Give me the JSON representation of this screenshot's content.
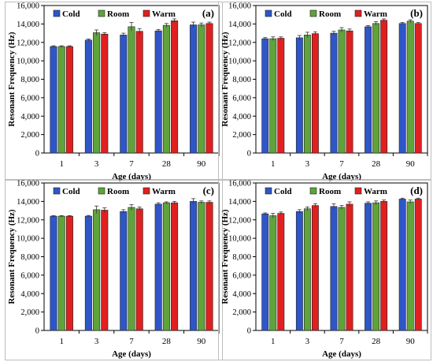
{
  "legend": {
    "colors": {
      "Cold": "#2e56c8",
      "Room": "#5fa33a",
      "Warm": "#e01f1f"
    }
  },
  "chart_data": [
    {
      "type": "bar",
      "panel_label": "(a)",
      "xlabel": "Age (days)",
      "ylabel": "Resonant Frequency (Hz)",
      "ylim": [
        0,
        16000
      ],
      "yticks": [
        0,
        2000,
        4000,
        6000,
        8000,
        10000,
        12000,
        14000,
        16000
      ],
      "ytick_labels": [
        "0",
        "2,000",
        "4,000",
        "6,000",
        "8,000",
        "10,000",
        "12,000",
        "14,000",
        "16,000"
      ],
      "categories": [
        "1",
        "3",
        "7",
        "28",
        "90"
      ],
      "legend_position": "top",
      "series": [
        {
          "name": "Cold",
          "color": "#2e56c8",
          "values": [
            11550,
            12250,
            12800,
            13250,
            13900
          ],
          "errors": [
            80,
            120,
            200,
            150,
            300
          ]
        },
        {
          "name": "Room",
          "color": "#5fa33a",
          "values": [
            11550,
            13050,
            13700,
            13850,
            13900
          ],
          "errors": [
            80,
            300,
            450,
            200,
            200
          ]
        },
        {
          "name": "Warm",
          "color": "#e01f1f",
          "values": [
            11550,
            12900,
            13200,
            14350,
            14050
          ],
          "errors": [
            80,
            150,
            300,
            200,
            150
          ]
        }
      ]
    },
    {
      "type": "bar",
      "panel_label": "(b)",
      "xlabel": "Age (days)",
      "ylabel": "Resonant Frequency (Hz)",
      "ylim": [
        0,
        16000
      ],
      "yticks": [
        0,
        2000,
        4000,
        6000,
        8000,
        10000,
        12000,
        14000,
        16000
      ],
      "ytick_labels": [
        "0",
        "2,000",
        "4,000",
        "6,000",
        "8,000",
        "10,000",
        "12,000",
        "14,000",
        "16,000"
      ],
      "categories": [
        "1",
        "3",
        "7",
        "28",
        "90"
      ],
      "legend_position": "top",
      "series": [
        {
          "name": "Cold",
          "color": "#2e56c8",
          "values": [
            12400,
            12500,
            13000,
            13700,
            14050
          ],
          "errors": [
            120,
            250,
            200,
            120,
            100
          ]
        },
        {
          "name": "Room",
          "color": "#5fa33a",
          "values": [
            12400,
            12800,
            13350,
            14050,
            14300
          ],
          "errors": [
            200,
            300,
            250,
            200,
            150
          ]
        },
        {
          "name": "Warm",
          "color": "#e01f1f",
          "values": [
            12450,
            12950,
            13250,
            14400,
            14050
          ],
          "errors": [
            150,
            200,
            200,
            150,
            100
          ]
        }
      ]
    },
    {
      "type": "bar",
      "panel_label": "(c)",
      "xlabel": "Age (days)",
      "ylabel": "Resonant Frequency (Hz)",
      "ylim": [
        0,
        16000
      ],
      "yticks": [
        0,
        2000,
        4000,
        6000,
        8000,
        10000,
        12000,
        14000,
        16000
      ],
      "ytick_labels": [
        "0",
        "2,000",
        "4,000",
        "6,000",
        "8,000",
        "10,000",
        "12,000",
        "14,000",
        "16,000"
      ],
      "categories": [
        "1",
        "3",
        "7",
        "28",
        "90"
      ],
      "legend_position": "top",
      "series": [
        {
          "name": "Cold",
          "color": "#2e56c8",
          "values": [
            12400,
            12400,
            12900,
            13700,
            14000
          ],
          "errors": [
            60,
            80,
            200,
            150,
            300
          ]
        },
        {
          "name": "Room",
          "color": "#5fa33a",
          "values": [
            12400,
            13100,
            13350,
            13850,
            13900
          ],
          "errors": [
            60,
            400,
            300,
            100,
            150
          ]
        },
        {
          "name": "Warm",
          "color": "#e01f1f",
          "values": [
            12400,
            13050,
            13200,
            13850,
            13900
          ],
          "errors": [
            60,
            250,
            200,
            150,
            150
          ]
        }
      ]
    },
    {
      "type": "bar",
      "panel_label": "(d)",
      "xlabel": "Age (days)",
      "ylabel": "Resonant Frequency (Hz)",
      "ylim": [
        0,
        16000
      ],
      "yticks": [
        0,
        2000,
        4000,
        6000,
        8000,
        10000,
        12000,
        14000,
        16000
      ],
      "ytick_labels": [
        "0",
        "2,000",
        "4,000",
        "6,000",
        "8,000",
        "10,000",
        "12,000",
        "14,000",
        "16,000"
      ],
      "categories": [
        "1",
        "3",
        "7",
        "28",
        "90"
      ],
      "legend_position": "top",
      "series": [
        {
          "name": "Cold",
          "color": "#2e56c8",
          "values": [
            12650,
            12900,
            13450,
            13800,
            14250
          ],
          "errors": [
            100,
            200,
            300,
            150,
            100
          ]
        },
        {
          "name": "Room",
          "color": "#5fa33a",
          "values": [
            12450,
            13200,
            13350,
            13850,
            13950
          ],
          "errors": [
            250,
            200,
            200,
            200,
            200
          ]
        },
        {
          "name": "Warm",
          "color": "#e01f1f",
          "values": [
            12700,
            13550,
            13700,
            14000,
            14250
          ],
          "errors": [
            150,
            200,
            250,
            150,
            100
          ]
        }
      ]
    }
  ]
}
